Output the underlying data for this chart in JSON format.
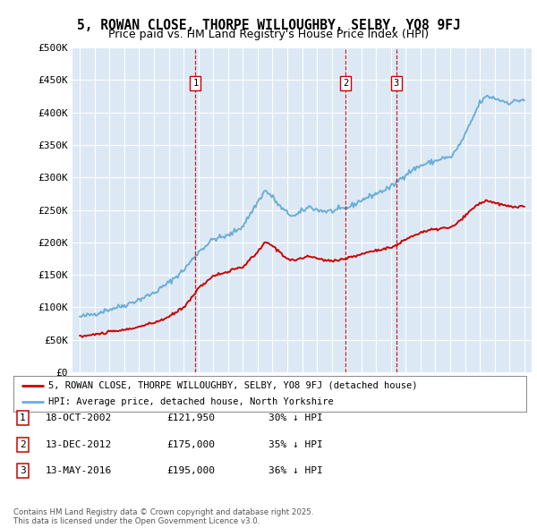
{
  "title": "5, ROWAN CLOSE, THORPE WILLOUGHBY, SELBY, YO8 9FJ",
  "subtitle": "Price paid vs. HM Land Registry's House Price Index (HPI)",
  "background_color": "#dce9f5",
  "hpi_color": "#6baed6",
  "price_color": "#cc0000",
  "transaction_color": "#cc0000",
  "ylim": [
    0,
    500000
  ],
  "yticks": [
    0,
    50000,
    100000,
    150000,
    200000,
    250000,
    300000,
    350000,
    400000,
    450000,
    500000
  ],
  "ytick_labels": [
    "£0",
    "£50K",
    "£100K",
    "£150K",
    "£200K",
    "£250K",
    "£300K",
    "£350K",
    "£400K",
    "£450K",
    "£500K"
  ],
  "xlim_min": 1994.5,
  "xlim_max": 2025.5,
  "transactions": [
    {
      "num": 1,
      "year": 2002.8,
      "price": 121950,
      "date": "18-OCT-2002",
      "amount": "£121,950",
      "pct": "30% ↓ HPI"
    },
    {
      "num": 2,
      "year": 2012.95,
      "price": 175000,
      "date": "13-DEC-2012",
      "amount": "£175,000",
      "pct": "35% ↓ HPI"
    },
    {
      "num": 3,
      "year": 2016.37,
      "price": 195000,
      "date": "13-MAY-2016",
      "amount": "£195,000",
      "pct": "36% ↓ HPI"
    }
  ],
  "legend_label_red": "5, ROWAN CLOSE, THORPE WILLOUGHBY, SELBY, YO8 9FJ (detached house)",
  "legend_label_blue": "HPI: Average price, detached house, North Yorkshire",
  "footer": "Contains HM Land Registry data © Crown copyright and database right 2025.\nThis data is licensed under the Open Government Licence v3.0.",
  "hpi_keyframes": {
    "1995.0": 85000,
    "1996.0": 90000,
    "1997.0": 97000,
    "1998.0": 103000,
    "1999.0": 112000,
    "2000.0": 122000,
    "2001.0": 138000,
    "2002.0": 157000,
    "2003.0": 185000,
    "2004.0": 205000,
    "2005.0": 210000,
    "2006.0": 225000,
    "2007.0": 262000,
    "2007.5": 280000,
    "2008.0": 270000,
    "2008.5": 255000,
    "2009.0": 245000,
    "2009.5": 240000,
    "2010.0": 248000,
    "2010.5": 255000,
    "2011.0": 250000,
    "2011.5": 248000,
    "2012.0": 248000,
    "2012.5": 250000,
    "2013.0": 253000,
    "2013.5": 258000,
    "2014.0": 265000,
    "2014.5": 270000,
    "2015.0": 275000,
    "2015.5": 280000,
    "2016.0": 285000,
    "2016.5": 295000,
    "2017.0": 305000,
    "2017.5": 312000,
    "2018.0": 318000,
    "2018.5": 322000,
    "2019.0": 325000,
    "2019.5": 330000,
    "2020.0": 330000,
    "2020.5": 345000,
    "2021.0": 365000,
    "2021.5": 390000,
    "2022.0": 415000,
    "2022.5": 425000,
    "2023.0": 422000,
    "2023.5": 418000,
    "2024.0": 415000,
    "2024.5": 418000,
    "2025.0": 420000
  },
  "price_keyframes": {
    "1995.0": 55000,
    "1996.0": 58000,
    "1997.0": 62000,
    "1998.0": 65000,
    "1999.0": 70000,
    "2000.0": 76000,
    "2001.0": 85000,
    "2002.0": 100000,
    "2002.8": 121950,
    "2003.0": 130000,
    "2004.0": 148000,
    "2005.0": 155000,
    "2006.0": 162000,
    "2007.0": 185000,
    "2007.5": 200000,
    "2008.0": 195000,
    "2008.5": 185000,
    "2009.0": 175000,
    "2009.5": 172000,
    "2010.0": 176000,
    "2010.5": 178000,
    "2011.0": 176000,
    "2011.5": 172000,
    "2012.0": 172000,
    "2012.5": 173000,
    "2012.95": 175000,
    "2013.0": 176000,
    "2013.5": 178000,
    "2014.0": 182000,
    "2014.5": 185000,
    "2015.0": 188000,
    "2015.5": 190000,
    "2016.0": 192000,
    "2016.37": 195000,
    "2016.5": 197000,
    "2017.0": 205000,
    "2017.5": 210000,
    "2018.0": 215000,
    "2018.5": 218000,
    "2019.0": 220000,
    "2019.5": 222000,
    "2020.0": 222000,
    "2020.5": 230000,
    "2021.0": 240000,
    "2021.5": 252000,
    "2022.0": 260000,
    "2022.5": 265000,
    "2023.0": 260000,
    "2023.5": 258000,
    "2024.0": 255000,
    "2024.5": 255000,
    "2025.0": 255000
  }
}
